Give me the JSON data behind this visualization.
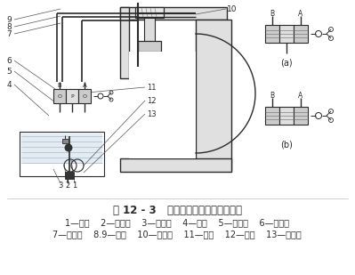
{
  "title": "图 12 - 3   打包机液压系统简易原理图",
  "legend_line1": "1—油箱    2—漏油器    3—吸油管    4—油管    5—溢流阀    6—节压阀",
  "legend_line2": "7—换向阀    8.9—管道    10—液压缸    11—油管    12—油泵    13—回油管",
  "bg_color": "#ffffff",
  "lc": "#2a2a2a",
  "gray_fill": "#cccccc",
  "light_gray": "#e0e0e0",
  "water_fill": "#c8d8e8",
  "title_fontsize": 8.5,
  "legend_fontsize": 7.0
}
